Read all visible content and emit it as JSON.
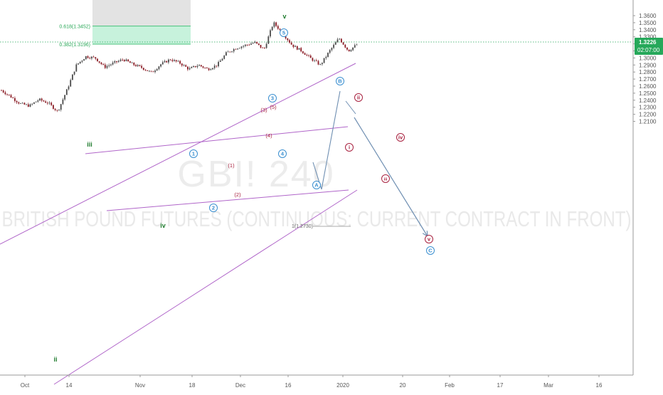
{
  "symbol_watermark": "GBI! 240",
  "instrument_watermark": "BRITISH POUND FUTURES (CONTINUOUS: CURRENT CONTRACT IN FRONT)",
  "colors": {
    "up_candle": "#4a4a4a",
    "down_candle": "#8a1b24",
    "wave_green": "#1d7a2c",
    "wave_blue": "#3a8fd0",
    "wave_red": "#a8213f",
    "channel": "#b065c9",
    "projection_arrow": "#6f8fb2",
    "fib_zone": "#c7f2dc",
    "fib_gray": "#e3e3e3",
    "fib_line": "#47c27a",
    "price_badge": "#26a85a"
  },
  "fib_levels": [
    {
      "label": "0.618(1.3452)",
      "price": 1.3452
    },
    {
      "label": "0.382(1.3196)",
      "price": 1.3196
    }
  ],
  "price_badge": {
    "price": "1.3226",
    "countdown": "02:07:00"
  },
  "chart_data": {
    "type": "candlestick",
    "title": "GBI! 240",
    "xlabel": "",
    "ylabel": "",
    "ylim": [
      1.21,
      1.365
    ],
    "x_ticks": [
      "Oct",
      "14",
      "Nov",
      "18",
      "Dec",
      "16",
      "2020",
      "20",
      "Feb",
      "17",
      "Mar",
      "16"
    ],
    "y_ticks": [
      "1.3600",
      "1.3500",
      "1.3400",
      "1.3300",
      "1.3200",
      "1.3100",
      "1.3000",
      "1.2900",
      "1.2800",
      "1.2700",
      "1.2600",
      "1.2500",
      "1.2400",
      "1.2300",
      "1.2200",
      "1.2100"
    ],
    "price_path": [
      [
        "Oct",
        1.254
      ],
      [
        "Oct",
        1.245
      ],
      [
        "Oct",
        1.235
      ],
      [
        "Oct",
        1.232
      ],
      [
        "Oct",
        1.241
      ],
      [
        "Oct",
        1.236
      ],
      [
        "Oct",
        1.224
      ],
      [
        "14",
        1.255
      ],
      [
        "14",
        1.29
      ],
      [
        "14",
        1.302
      ],
      [
        "14",
        1.3
      ],
      [
        "14",
        1.287
      ],
      [
        "14",
        1.293
      ],
      [
        "Nov",
        1.298
      ],
      [
        "Nov",
        1.291
      ],
      [
        "Nov",
        1.286
      ],
      [
        "Nov",
        1.279
      ],
      [
        "Nov",
        1.291
      ],
      [
        "18",
        1.298
      ],
      [
        "18",
        1.293
      ],
      [
        "18",
        1.284
      ],
      [
        "18",
        1.29
      ],
      [
        "18",
        1.284
      ],
      [
        "18",
        1.29
      ],
      [
        "Dec",
        1.307
      ],
      [
        "Dec",
        1.314
      ],
      [
        "Dec",
        1.318
      ],
      [
        "Dec",
        1.322
      ],
      [
        "Dec",
        1.312
      ],
      [
        "16",
        1.35
      ],
      [
        "16",
        1.335
      ],
      [
        "16",
        1.318
      ],
      [
        "16",
        1.31
      ],
      [
        "16",
        1.299
      ],
      [
        "16",
        1.29
      ],
      [
        "16",
        1.31
      ],
      [
        "2020",
        1.328
      ],
      [
        "2020",
        1.31
      ],
      [
        "2020",
        1.32
      ]
    ],
    "forecast_path": [
      [
        "2020",
        1.3226
      ],
      [
        "20",
        1.272
      ]
    ],
    "wave_labels": [
      {
        "text": "v",
        "price": 1.3612
      },
      {
        "text": "iii",
        "price": 1.3025
      },
      {
        "text": "iv",
        "price": 1.2765
      },
      {
        "text": "ii",
        "price": 1.2215
      },
      {
        "text": "5",
        "price": 1.3515
      },
      {
        "text": "3",
        "price": 1.3235
      },
      {
        "text": "(5)",
        "price": 1.3206
      },
      {
        "text": "(3)",
        "price": 1.3185
      },
      {
        "text": "(4)",
        "price": 1.3115
      },
      {
        "text": "1",
        "price": 1.3045
      },
      {
        "text": "(1)",
        "price": 1.2995
      },
      {
        "text": "(2)",
        "price": 1.2865
      },
      {
        "text": "2",
        "price": 1.2835
      },
      {
        "text": "4",
        "price": 1.3045
      },
      {
        "text": "A",
        "price": 1.289
      },
      {
        "text": "B",
        "price": 1.3315
      },
      {
        "text": "i",
        "price": 1.3075
      },
      {
        "text": "ii",
        "price": 1.3253
      },
      {
        "text": "iii",
        "price": 1.2925
      },
      {
        "text": "iv",
        "price": 1.3135
      },
      {
        "text": "v",
        "price": 1.2667
      },
      {
        "text": "C",
        "price": 1.2635
      }
    ],
    "annotations": [
      {
        "text": "1(1.2730)",
        "price": 1.273
      }
    ],
    "grid": false
  }
}
